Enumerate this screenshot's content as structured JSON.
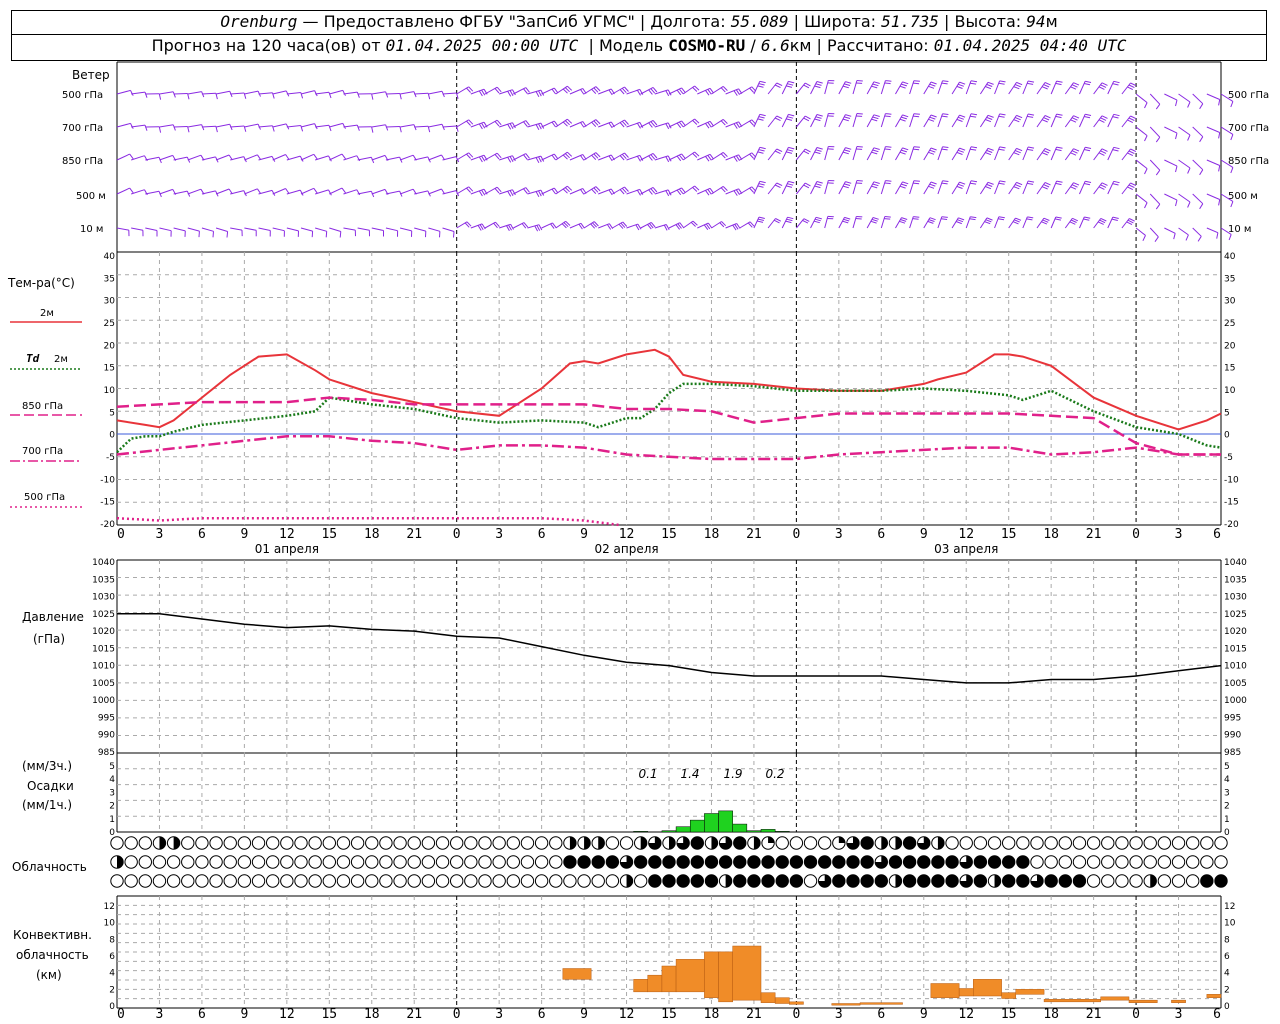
{
  "header": {
    "city": "Orenburg",
    "dash": " — ",
    "provided": "Предоставлено ФГБУ \"ЗапСиб УГМС\"",
    "lon_label": "Долгота:",
    "lon": "55.089",
    "lat_label": "Широта:",
    "lat": "51.735",
    "alt_label": "Высота:",
    "alt": "94",
    "alt_unit": "м",
    "forecast_prefix": "Прогноз на 120 часа(ов) от",
    "start": "01.04.2025 00:00 UTC",
    "model_label": "Модель",
    "model": "COSMO-RU",
    "model_res": "6.6",
    "model_res_unit": "км",
    "calc_label": "Рассчитано:",
    "calc": "01.04.2025 04:40 UTC"
  },
  "wind_panel": {
    "title": "Ветер",
    "levels": [
      "500 гПа",
      "700 гПа",
      "850 гПа",
      "500  м",
      "10   м"
    ],
    "color": "#8a2be2"
  },
  "temp_panel": {
    "title": "Тем-ра(°C)",
    "legend": [
      {
        "prefix": "",
        "label": "2м",
        "color": "#e8343a",
        "style": "solid"
      },
      {
        "prefix": "Td",
        "label": "2м",
        "color": "#1a7a1a",
        "style": "dotted"
      },
      {
        "prefix": "",
        "label": "850 гПа",
        "color": "#e0208a",
        "style": "dash"
      },
      {
        "prefix": "",
        "label": "700 гПа",
        "color": "#e0208a",
        "style": "dashdot"
      },
      {
        "prefix": "",
        "label": "500 гПа",
        "color": "#e0208a",
        "style": "dot"
      }
    ],
    "y_ticks": [
      "40",
      "35",
      "30",
      "25",
      "20",
      "15",
      "10",
      "5",
      "0",
      "-5",
      "-10",
      "-15",
      "-20"
    ]
  },
  "pressure_panel": {
    "title": "Давление",
    "unit": "(гПа)",
    "y_ticks": [
      "1040",
      "1035",
      "1030",
      "1025",
      "1020",
      "1015",
      "1010",
      "1005",
      "1000",
      "995",
      "990",
      "985"
    ]
  },
  "precip_panel": {
    "label1": "(мм/3ч.)",
    "label2": "Осадки",
    "label3": "(мм/1ч.)",
    "y_ticks": [
      "5",
      "4",
      "3",
      "2",
      "1",
      "0"
    ],
    "totals": [
      "0.1",
      "1.4",
      "1.9",
      "0.2"
    ]
  },
  "cloud_panel": {
    "title": "Облачность"
  },
  "conv_panel": {
    "label1": "Конвективн.",
    "label2": "облачность",
    "label3": "(км)",
    "y_ticks": [
      "12",
      "10",
      "8",
      "6",
      "4",
      "2",
      "0"
    ]
  },
  "x_axis": {
    "ticks": [
      "0",
      "3",
      "6",
      "9",
      "12",
      "15",
      "18",
      "21",
      "0",
      "3",
      "6",
      "9",
      "12",
      "15",
      "18",
      "21",
      "0",
      "3",
      "6",
      "9",
      "12",
      "15",
      "18",
      "21",
      "0",
      "3",
      "6"
    ],
    "days": [
      "01 апреля",
      "02 апреля",
      "03 апреля"
    ]
  },
  "chart_data": {
    "type": "line",
    "x_unit": "hours since 01.04.2025 00:00 UTC",
    "x_range": [
      0,
      78
    ],
    "series": [
      {
        "name": "2м",
        "color": "#e8343a",
        "x": [
          0,
          2,
          3,
          4,
          6,
          8,
          10,
          12,
          14,
          15,
          18,
          21,
          24,
          27,
          30,
          32,
          33,
          34,
          36,
          38,
          39,
          40,
          42,
          45,
          48,
          51,
          54,
          57,
          58,
          60,
          62,
          63,
          64,
          66,
          69,
          72,
          75,
          77,
          78
        ],
        "values": [
          3,
          2,
          1.5,
          3,
          8,
          13,
          17,
          17.5,
          14,
          12,
          9,
          7,
          5,
          4,
          10,
          15.5,
          16,
          15.5,
          17.5,
          18.5,
          17,
          13,
          11.5,
          11,
          10,
          9.5,
          9.5,
          11,
          12,
          13.5,
          17.5,
          17.5,
          17,
          15,
          8,
          4,
          1,
          3,
          4.5
        ]
      },
      {
        "name": "Td 2м",
        "color": "#1a7a1a",
        "x": [
          0,
          1,
          2,
          3,
          4,
          6,
          9,
          12,
          14,
          15,
          18,
          21,
          24,
          27,
          30,
          33,
          34,
          36,
          37,
          38,
          39,
          40,
          42,
          45,
          48,
          51,
          54,
          57,
          60,
          63,
          64,
          66,
          69,
          72,
          75,
          77,
          78
        ],
        "values": [
          -4,
          -1,
          -0.5,
          -0.5,
          0.5,
          2,
          3,
          4,
          5,
          8,
          6.5,
          5.5,
          3.5,
          2.5,
          3,
          2.5,
          1.5,
          3.5,
          3.5,
          5.5,
          9,
          11,
          11,
          10.5,
          9.5,
          9.5,
          9.5,
          10,
          9.5,
          8.5,
          7.5,
          9.5,
          5,
          1.5,
          0,
          -2.5,
          -3
        ]
      },
      {
        "name": "850 гПа",
        "color": "#e0208a",
        "x": [
          0,
          3,
          6,
          9,
          12,
          15,
          18,
          21,
          24,
          27,
          30,
          33,
          36,
          39,
          42,
          45,
          48,
          51,
          54,
          57,
          60,
          63,
          66,
          69,
          72,
          75,
          78
        ],
        "values": [
          6,
          6.5,
          7,
          7,
          7,
          8,
          7.5,
          6.5,
          6.5,
          6.5,
          6.5,
          6.5,
          5.5,
          5.5,
          5,
          2.5,
          3.5,
          4.5,
          4.5,
          4.5,
          4.5,
          4.5,
          4,
          3.5,
          -2,
          -4.5,
          -4.5
        ]
      },
      {
        "name": "700 гПа",
        "color": "#e0208a",
        "x": [
          0,
          3,
          6,
          9,
          12,
          15,
          18,
          21,
          24,
          27,
          30,
          33,
          36,
          39,
          42,
          45,
          48,
          51,
          54,
          57,
          60,
          63,
          66,
          69,
          72,
          75,
          78
        ],
        "values": [
          -4.5,
          -3.5,
          -2.5,
          -1.5,
          -0.5,
          -0.5,
          -1.5,
          -2,
          -3.5,
          -2.5,
          -2.5,
          -3,
          -4.5,
          -5,
          -5.5,
          -5.5,
          -5.5,
          -4.5,
          -4,
          -3.5,
          -3,
          -3,
          -4.5,
          -4,
          -3,
          -4.5,
          -4.5
        ]
      },
      {
        "name": "500 гПа",
        "color": "#e0208a",
        "x": [
          0,
          3,
          6,
          9,
          12,
          15,
          18,
          21,
          24,
          27,
          30,
          33,
          35.5
        ],
        "values": [
          -18.5,
          -19,
          -18.5,
          -18.5,
          -18.5,
          -18.5,
          -18.5,
          -18.5,
          -18.5,
          -18.5,
          -18.5,
          -19,
          -20
        ]
      },
      {
        "name": "Давление",
        "color": "#000000",
        "x": [
          0,
          3,
          6,
          9,
          12,
          15,
          18,
          21,
          24,
          27,
          30,
          33,
          36,
          39,
          42,
          45,
          48,
          51,
          54,
          57,
          60,
          63,
          66,
          69,
          72,
          75,
          78
        ],
        "values": [
          1025,
          1025,
          1023.5,
          1022,
          1021,
          1021.5,
          1020.5,
          1020,
          1018.5,
          1018,
          1015.5,
          1013,
          1011,
          1010,
          1008,
          1007,
          1007,
          1007,
          1007,
          1006,
          1005,
          1005,
          1006,
          1006,
          1007,
          1008.5,
          1010
        ]
      }
    ],
    "precip": {
      "x": [
        37,
        39,
        40,
        41,
        42,
        43,
        44,
        45,
        46,
        47
      ],
      "values": [
        0.05,
        0.1,
        0.4,
        0.9,
        1.4,
        1.6,
        0.6,
        0.1,
        0.2,
        0.05
      ],
      "color": "#1fd21f"
    },
    "convective": {
      "color": "#f08c28",
      "bars": [
        {
          "x0": 31.5,
          "x1": 33.5,
          "base": 3.2,
          "top": 4.5
        },
        {
          "x0": 36.5,
          "x1": 37.5,
          "base": 1.7,
          "top": 3.2
        },
        {
          "x0": 37.5,
          "x1": 38.5,
          "base": 1.7,
          "top": 3.7
        },
        {
          "x0": 38.5,
          "x1": 39.5,
          "base": 1.7,
          "top": 4.8
        },
        {
          "x0": 39.5,
          "x1": 41.5,
          "base": 1.7,
          "top": 5.6
        },
        {
          "x0": 41.5,
          "x1": 42.5,
          "base": 1.0,
          "top": 6.5
        },
        {
          "x0": 42.5,
          "x1": 43.5,
          "base": 0.5,
          "top": 6.5
        },
        {
          "x0": 43.5,
          "x1": 45.5,
          "base": 0.7,
          "top": 7.2
        },
        {
          "x0": 45.5,
          "x1": 46.5,
          "base": 0.4,
          "top": 1.6
        },
        {
          "x0": 46.5,
          "x1": 47.5,
          "base": 0.3,
          "top": 1.0
        },
        {
          "x0": 47.5,
          "x1": 48.5,
          "base": 0.2,
          "top": 0.5
        },
        {
          "x0": 50.5,
          "x1": 52.5,
          "base": 0.1,
          "top": 0.3
        },
        {
          "x0": 52.5,
          "x1": 55.5,
          "base": 0.2,
          "top": 0.4
        },
        {
          "x0": 57.5,
          "x1": 59.5,
          "base": 1.0,
          "top": 2.7
        },
        {
          "x0": 59.5,
          "x1": 60.5,
          "base": 1.2,
          "top": 2.1
        },
        {
          "x0": 60.5,
          "x1": 62.5,
          "base": 1.2,
          "top": 3.2
        },
        {
          "x0": 62.5,
          "x1": 63.5,
          "base": 0.9,
          "top": 1.6
        },
        {
          "x0": 63.5,
          "x1": 65.5,
          "base": 1.4,
          "top": 2.0
        },
        {
          "x0": 65.5,
          "x1": 69.5,
          "base": 0.5,
          "top": 0.8
        },
        {
          "x0": 69.5,
          "x1": 71.5,
          "base": 0.7,
          "top": 1.1
        },
        {
          "x0": 71.5,
          "x1": 73.5,
          "base": 0.4,
          "top": 0.7
        },
        {
          "x0": 74.5,
          "x1": 75.5,
          "base": 0.4,
          "top": 0.7
        },
        {
          "x0": 77,
          "x1": 78,
          "base": 1.0,
          "top": 1.4
        }
      ]
    }
  }
}
